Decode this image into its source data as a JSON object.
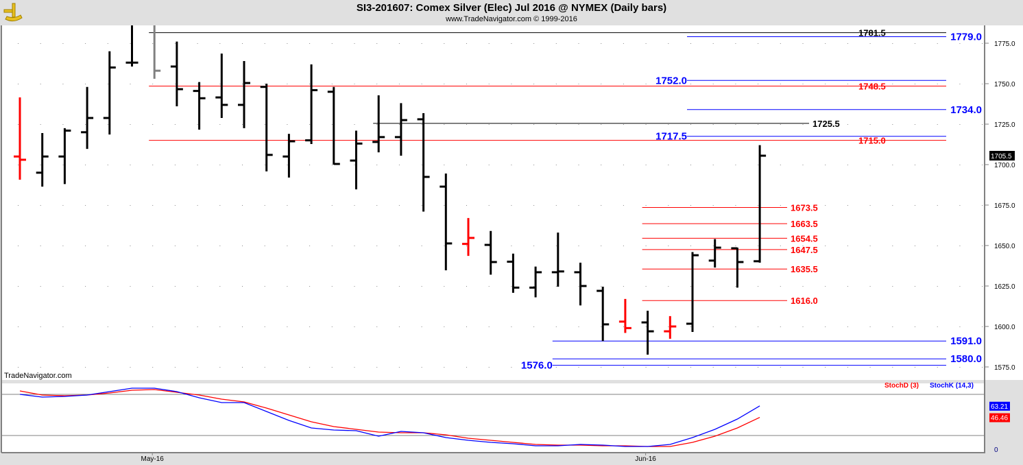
{
  "header": {
    "title": "SI3-201607:  Comex Silver (Elec) Jul 2016 @ NYMEX  (Daily bars)",
    "subtitle": "www.TradeNavigator.com © 1999-2016"
  },
  "watermark": "TradeNavigator.com",
  "colors": {
    "up": "#000000",
    "down": "#ff0000",
    "blue": "#0000ff",
    "red": "#ff0000",
    "black": "#000000",
    "gray": "#808080"
  },
  "chart_data": [
    {
      "type": "ohlc",
      "title": "SI3-201607 Daily bars",
      "ylim": [
        1565,
        1790
      ],
      "yticks": [
        1575,
        1600,
        1625,
        1650,
        1675,
        1700,
        1725,
        1750,
        1775
      ],
      "xlabels": [
        {
          "bar": 6,
          "label": "May-16"
        },
        {
          "bar": 28,
          "label": "Jun-16"
        }
      ],
      "last_price": "1705.5",
      "bars": [
        {
          "o": 1705,
          "h": 1741.5,
          "l": 1690.7,
          "c": 1703,
          "col": "down"
        },
        {
          "o": 1695,
          "h": 1719.5,
          "l": 1686.4,
          "c": 1705,
          "col": "up"
        },
        {
          "o": 1705,
          "h": 1722.5,
          "l": 1688,
          "c": 1721,
          "col": "up"
        },
        {
          "o": 1720,
          "h": 1748,
          "l": 1709.7,
          "c": 1728.8,
          "col": "up"
        },
        {
          "o": 1728.8,
          "h": 1770,
          "l": 1718.6,
          "c": 1760,
          "col": "up"
        },
        {
          "o": 1763,
          "h": 1786,
          "l": 1760.6,
          "c": 1763,
          "col": "up"
        },
        {
          "o": null,
          "h": 1786,
          "l": 1753,
          "c": 1758,
          "col": "gray"
        },
        {
          "o": 1760.6,
          "h": 1776,
          "l": 1736,
          "c": 1746.6,
          "col": "up"
        },
        {
          "o": 1745.5,
          "h": 1751,
          "l": 1721.6,
          "c": 1741,
          "col": "up"
        },
        {
          "o": 1741.5,
          "h": 1768.6,
          "l": 1728.8,
          "c": 1736.9,
          "col": "up"
        },
        {
          "o": 1736.9,
          "h": 1764,
          "l": 1722.5,
          "c": 1750.4,
          "col": "up"
        },
        {
          "o": 1748,
          "h": 1750,
          "l": 1695.8,
          "c": 1706,
          "col": "up"
        },
        {
          "o": 1705,
          "h": 1719,
          "l": 1692,
          "c": 1714.4,
          "col": "up"
        },
        {
          "o": 1715,
          "h": 1761.9,
          "l": 1712.7,
          "c": 1746,
          "col": "up"
        },
        {
          "o": 1745,
          "h": 1748,
          "l": 1700,
          "c": 1700.4,
          "col": "up"
        },
        {
          "o": 1702.5,
          "h": 1721,
          "l": 1684.7,
          "c": 1713,
          "col": "up"
        },
        {
          "o": 1714,
          "h": 1742.8,
          "l": 1707.6,
          "c": 1717,
          "col": "up"
        },
        {
          "o": 1717,
          "h": 1738,
          "l": 1705.5,
          "c": 1727.5,
          "col": "up"
        },
        {
          "o": 1728,
          "h": 1731.8,
          "l": 1671,
          "c": 1692.4,
          "col": "up"
        },
        {
          "o": 1686.4,
          "h": 1694.5,
          "l": 1634.7,
          "c": 1651.3,
          "col": "up"
        },
        {
          "o": 1651,
          "h": 1667,
          "l": 1643.6,
          "c": 1654.7,
          "col": "down"
        },
        {
          "o": 1650.4,
          "h": 1659,
          "l": 1632,
          "c": 1639.8,
          "col": "up"
        },
        {
          "o": 1640,
          "h": 1645,
          "l": 1620.8,
          "c": 1624,
          "col": "up"
        },
        {
          "o": 1624,
          "h": 1637,
          "l": 1618,
          "c": 1633.5,
          "col": "up"
        },
        {
          "o": 1633.5,
          "h": 1658,
          "l": 1624.6,
          "c": 1634,
          "col": "up"
        },
        {
          "o": 1633.5,
          "h": 1639.4,
          "l": 1613,
          "c": 1625,
          "col": "up"
        },
        {
          "o": 1622,
          "h": 1624.6,
          "l": 1591,
          "c": 1601.3,
          "col": "up"
        },
        {
          "o": 1603,
          "h": 1617,
          "l": 1596,
          "c": 1599,
          "col": "down"
        },
        {
          "o": 1602.5,
          "h": 1609.7,
          "l": 1582.6,
          "c": 1597,
          "col": "up"
        },
        {
          "o": 1597,
          "h": 1606.4,
          "l": 1592.4,
          "c": 1600,
          "col": "down"
        },
        {
          "o": 1601.7,
          "h": 1646,
          "l": 1596.6,
          "c": 1644,
          "col": "up"
        },
        {
          "o": 1640.7,
          "h": 1654,
          "l": 1636.4,
          "c": 1648.7,
          "col": "up"
        },
        {
          "o": 1648.3,
          "h": 1648.7,
          "l": 1624,
          "c": 1639.8,
          "col": "up"
        },
        {
          "o": 1640.3,
          "h": 1712,
          "l": 1639.4,
          "c": 1705.5,
          "col": "up"
        }
      ],
      "levels": [
        {
          "value": 1781.5,
          "label": "1781.5",
          "color": "black",
          "from": 6,
          "to": "end",
          "pos": "mid"
        },
        {
          "value": 1779.0,
          "label": "1779.0",
          "color": "blue",
          "from": 30,
          "to": "end",
          "pos": "right"
        },
        {
          "value": 1752.0,
          "label": "1752.0",
          "color": "blue",
          "from": 30,
          "to": "end",
          "pos": "left"
        },
        {
          "value": 1748.5,
          "label": "1748.5",
          "color": "red",
          "from": 6,
          "to": "end",
          "pos": "mid"
        },
        {
          "value": 1734.0,
          "label": "1734.0",
          "color": "blue",
          "from": 30,
          "to": "end",
          "pos": "right"
        },
        {
          "value": 1725.5,
          "label": "1725.5",
          "color": "black",
          "from": 16,
          "to": "short",
          "pos": "after"
        },
        {
          "value": 1717.5,
          "label": "1717.5",
          "color": "blue",
          "from": 30,
          "to": "end",
          "pos": "left"
        },
        {
          "value": 1715.0,
          "label": "1715.0",
          "color": "red",
          "from": 6,
          "to": "end",
          "pos": "mid"
        },
        {
          "value": 1673.5,
          "label": "1673.5",
          "color": "red",
          "from": 28,
          "to": "near",
          "pos": "after"
        },
        {
          "value": 1663.5,
          "label": "1663.5",
          "color": "red",
          "from": 28,
          "to": "near",
          "pos": "after"
        },
        {
          "value": 1654.5,
          "label": "1654.5",
          "color": "red",
          "from": 28,
          "to": "near",
          "pos": "after"
        },
        {
          "value": 1647.5,
          "label": "1647.5",
          "color": "red",
          "from": 28,
          "to": "near",
          "pos": "after"
        },
        {
          "value": 1635.5,
          "label": "1635.5",
          "color": "red",
          "from": 28,
          "to": "near",
          "pos": "after"
        },
        {
          "value": 1616.0,
          "label": "1616.0",
          "color": "red",
          "from": 28,
          "to": "near",
          "pos": "after"
        },
        {
          "value": 1591.0,
          "label": "1591.0",
          "color": "blue",
          "from": 24,
          "to": "end",
          "pos": "right"
        },
        {
          "value": 1580.0,
          "label": "1580.0",
          "color": "blue",
          "from": 24,
          "to": "end",
          "pos": "right"
        },
        {
          "value": 1576.0,
          "label": "1576.0",
          "color": "blue",
          "from": 24,
          "to": "end",
          "pos": "left"
        }
      ]
    },
    {
      "type": "line",
      "title": "Stochastic",
      "ylim": [
        0,
        100
      ],
      "yticks": [
        "0"
      ],
      "hlines": [
        20,
        80
      ],
      "legend": [
        "StochD (3)",
        "StochK (14,3)"
      ],
      "last_values": [
        "63.21",
        "46.46"
      ],
      "series": [
        {
          "name": "StochK (14,3)",
          "color": "blue",
          "values": [
            80,
            76,
            77,
            79,
            84,
            89,
            89,
            84,
            75,
            68,
            68,
            55,
            42,
            31,
            28,
            27,
            19,
            26,
            24,
            17,
            13,
            10,
            8,
            5,
            5,
            7,
            6,
            4,
            4,
            7,
            17,
            29,
            44,
            63.21
          ]
        },
        {
          "name": "StochD (3)",
          "color": "red",
          "values": [
            85,
            79,
            78,
            79,
            82,
            86,
            87,
            83,
            79,
            73,
            69,
            60,
            50,
            40,
            33,
            29,
            25,
            24,
            24,
            21,
            16,
            13,
            10,
            7,
            6,
            6,
            5,
            5,
            4,
            4,
            10,
            19,
            31,
            46.46
          ]
        }
      ]
    }
  ]
}
